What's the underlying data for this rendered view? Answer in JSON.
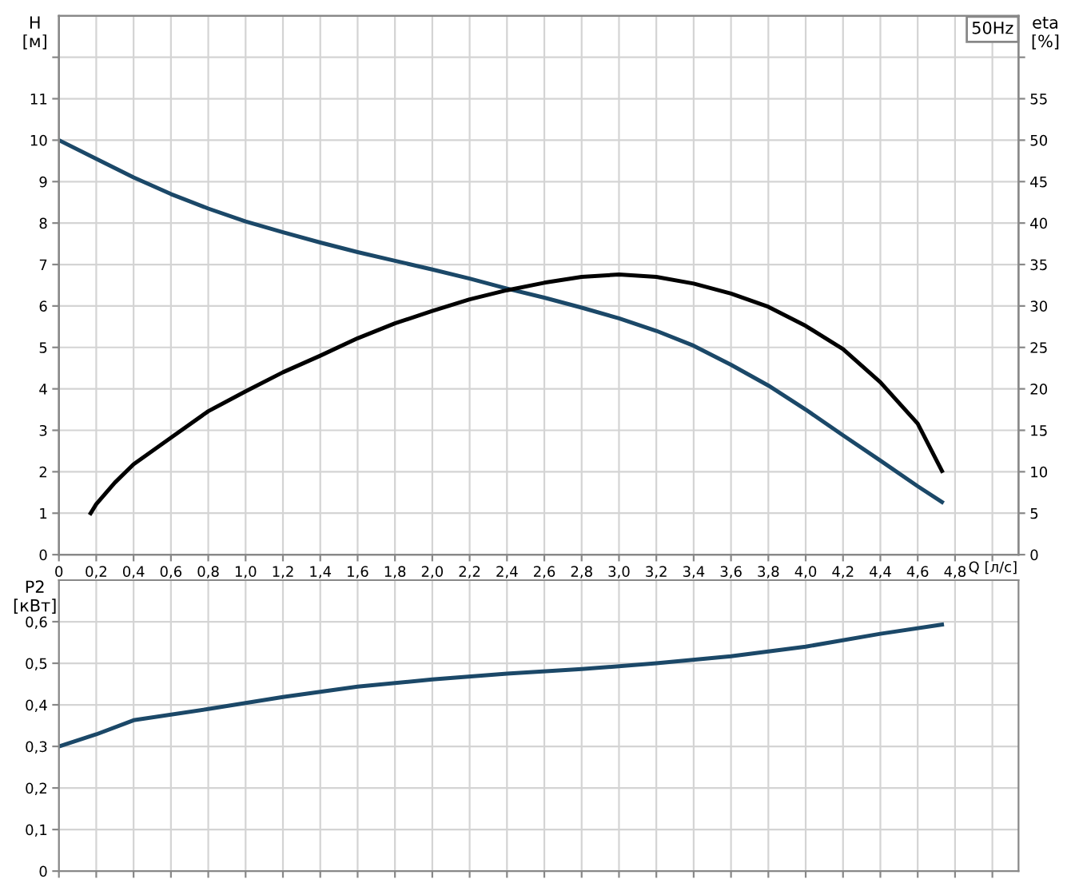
{
  "chart_data": [
    {
      "type": "line",
      "ylabel": "H\n[м]",
      "y2label": "eta\n[%]",
      "xlabel": "Q [л/с]",
      "annotations": [
        "50Hz"
      ],
      "xlim": [
        0,
        5.14
      ],
      "xticks": [
        0,
        {
          "value": 0.2,
          "label": "0,2"
        },
        {
          "value": 0.4,
          "label": "0,4"
        },
        {
          "value": 0.6,
          "label": "0,6"
        },
        {
          "value": 0.8,
          "label": "0,8"
        },
        {
          "value": 1.0,
          "label": "1,0"
        },
        {
          "value": 1.2,
          "label": "1,2"
        },
        {
          "value": 1.4,
          "label": "1,4"
        },
        {
          "value": 1.6,
          "label": "1,6"
        },
        {
          "value": 1.8,
          "label": "1,8"
        },
        {
          "value": 2.0,
          "label": "2,0"
        },
        {
          "value": 2.2,
          "label": "2,2"
        },
        {
          "value": 2.4,
          "label": "2,4"
        },
        {
          "value": 2.6,
          "label": "2,6"
        },
        {
          "value": 2.8,
          "label": "2,8"
        },
        {
          "value": 3.0,
          "label": "3,0"
        },
        {
          "value": 3.2,
          "label": "3,2"
        },
        {
          "value": 3.4,
          "label": "3,4"
        },
        {
          "value": 3.6,
          "label": "3,6"
        },
        {
          "value": 3.8,
          "label": "3,8"
        },
        {
          "value": 4.0,
          "label": "4,0"
        },
        {
          "value": 4.2,
          "label": "4,2"
        },
        {
          "value": 4.4,
          "label": "4,4"
        },
        {
          "value": 4.6,
          "label": "4,6"
        },
        {
          "value": 4.8,
          "label": "4,8"
        },
        {
          "value": 5.0,
          "label": null
        }
      ],
      "ylim": [
        0,
        13
      ],
      "yticks": [
        0,
        1,
        2,
        3,
        4,
        5,
        6,
        7,
        8,
        9,
        10,
        11,
        {
          "value": 12,
          "label": null
        }
      ],
      "y2lim": [
        0,
        65
      ],
      "y2ticks": [
        0,
        5,
        10,
        15,
        20,
        25,
        30,
        35,
        40,
        45,
        50,
        55,
        {
          "value": 60,
          "label": null
        }
      ],
      "grid": true,
      "legend": false,
      "marker": "none",
      "line_style": "solid",
      "series": [
        {
          "color": "#1b4868",
          "x": [
            0,
            0.2,
            0.4,
            0.6,
            0.8,
            1.0,
            1.2,
            1.4,
            1.6,
            1.8,
            2.0,
            2.2,
            2.4,
            2.6,
            2.8,
            3.0,
            3.2,
            3.4,
            3.6,
            3.8,
            4.0,
            4.2,
            4.4,
            4.6,
            4.73
          ],
          "values": [
            10,
            9.55,
            9.1,
            8.7,
            8.35,
            8.04,
            7.78,
            7.53,
            7.3,
            7.09,
            6.88,
            6.66,
            6.42,
            6.2,
            5.96,
            5.7,
            5.4,
            5.04,
            4.58,
            4.08,
            3.5,
            2.88,
            2.27,
            1.65,
            1.27
          ]
        },
        {
          "color": "#000000",
          "axis": "y2",
          "x": [
            0.17,
            0.2,
            0.3,
            0.4,
            0.6,
            0.8,
            1.0,
            1.2,
            1.4,
            1.6,
            1.8,
            2.0,
            2.2,
            2.4,
            2.6,
            2.8,
            3.0,
            3.2,
            3.4,
            3.6,
            3.8,
            4.0,
            4.2,
            4.4,
            4.6,
            4.73
          ],
          "values": [
            5,
            6.1,
            8.7,
            10.9,
            14.1,
            17.3,
            19.7,
            22,
            24,
            26.1,
            27.9,
            29.4,
            30.8,
            31.9,
            32.8,
            33.5,
            33.8,
            33.5,
            32.7,
            31.5,
            29.9,
            27.6,
            24.8,
            20.8,
            15.8,
            10.1
          ]
        }
      ]
    },
    {
      "type": "line",
      "ylabel": "P2\n[кВт]",
      "tick_labels": "y",
      "xlim": [
        0,
        5.14
      ],
      "xticks": [
        0,
        0.2,
        0.4,
        0.6,
        0.8,
        1.0,
        1.2,
        1.4,
        1.6,
        1.8,
        2.0,
        2.2,
        2.4,
        2.6,
        2.8,
        3.0,
        3.2,
        3.4,
        3.6,
        3.8,
        4.0,
        4.2,
        4.4,
        4.6,
        4.8,
        5.0
      ],
      "ylim": [
        0,
        0.7
      ],
      "yticks": [
        0,
        {
          "value": 0.1,
          "label": "0,1"
        },
        {
          "value": 0.2,
          "label": "0,2"
        },
        {
          "value": 0.3,
          "label": "0,3"
        },
        {
          "value": 0.4,
          "label": "0,4"
        },
        {
          "value": 0.5,
          "label": "0,5"
        },
        {
          "value": 0.6,
          "label": "0,6"
        }
      ],
      "grid": true,
      "legend": false,
      "marker": "none",
      "line_style": "solid",
      "series": [
        {
          "color": "#1b4868",
          "x": [
            0,
            0.2,
            0.4,
            0.8,
            1.2,
            1.6,
            2.0,
            2.4,
            2.8,
            3.2,
            3.6,
            4.0,
            4.4,
            4.73
          ],
          "values": [
            0.3,
            0.329,
            0.363,
            0.39,
            0.419,
            0.444,
            0.461,
            0.475,
            0.486,
            0.5,
            0.517,
            0.54,
            0.571,
            0.593
          ]
        }
      ]
    }
  ]
}
